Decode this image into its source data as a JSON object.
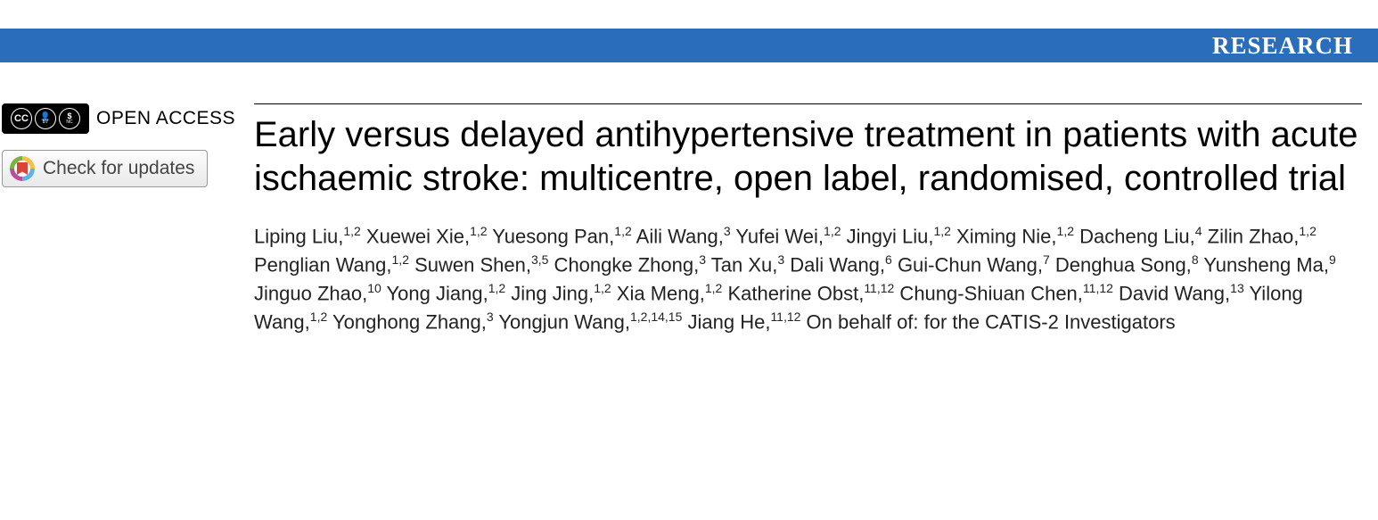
{
  "colors": {
    "banner_bg": "#2a6ebb",
    "banner_text": "#ffffff",
    "page_bg": "#ffffff",
    "rule": "#000000",
    "body_text": "#000000",
    "btn_border": "#999999",
    "btn_text": "#444444"
  },
  "banner": {
    "label": "RESEARCH"
  },
  "sidebar": {
    "open_access_label": "OPEN ACCESS",
    "cc_icons": [
      "CC",
      "BY",
      "NC"
    ],
    "updates_label": "Check for updates"
  },
  "article": {
    "title": "Early versus delayed antihypertensive treatment in patients with acute ischaemic stroke: multicentre, open label, randomised, controlled trial",
    "authors": [
      {
        "name": "Liping Liu",
        "aff": "1,2"
      },
      {
        "name": "Xuewei Xie",
        "aff": "1,2"
      },
      {
        "name": "Yuesong Pan",
        "aff": "1,2"
      },
      {
        "name": "Aili Wang",
        "aff": "3"
      },
      {
        "name": "Yufei Wei",
        "aff": "1,2"
      },
      {
        "name": "Jingyi Liu",
        "aff": "1,2"
      },
      {
        "name": "Ximing Nie",
        "aff": "1,2"
      },
      {
        "name": "Dacheng Liu",
        "aff": "4"
      },
      {
        "name": "Zilin Zhao",
        "aff": "1,2"
      },
      {
        "name": "Penglian Wang",
        "aff": "1,2"
      },
      {
        "name": "Suwen Shen",
        "aff": "3,5"
      },
      {
        "name": "Chongke Zhong",
        "aff": "3"
      },
      {
        "name": "Tan Xu",
        "aff": "3"
      },
      {
        "name": "Dali Wang",
        "aff": "6"
      },
      {
        "name": "Gui-Chun Wang",
        "aff": "7"
      },
      {
        "name": "Denghua Song",
        "aff": "8"
      },
      {
        "name": "Yunsheng Ma",
        "aff": "9"
      },
      {
        "name": "Jinguo Zhao",
        "aff": "10"
      },
      {
        "name": "Yong Jiang",
        "aff": "1,2"
      },
      {
        "name": "Jing Jing",
        "aff": "1,2"
      },
      {
        "name": "Xia Meng",
        "aff": "1,2"
      },
      {
        "name": "Katherine Obst",
        "aff": "11,12"
      },
      {
        "name": "Chung-Shiuan Chen",
        "aff": "11,12"
      },
      {
        "name": "David Wang",
        "aff": "13"
      },
      {
        "name": "Yilong Wang",
        "aff": "1,2"
      },
      {
        "name": "Yonghong Zhang",
        "aff": "3"
      },
      {
        "name": "Yongjun Wang",
        "aff": "1,2,14,15"
      },
      {
        "name": "Jiang He",
        "aff": "11,12"
      }
    ],
    "on_behalf": "On behalf of: for the CATIS-2 Investigators"
  },
  "typography": {
    "banner_fontsize": 27,
    "title_fontsize": 40,
    "authors_fontsize": 22,
    "oa_label_fontsize": 21,
    "updates_fontsize": 21
  }
}
